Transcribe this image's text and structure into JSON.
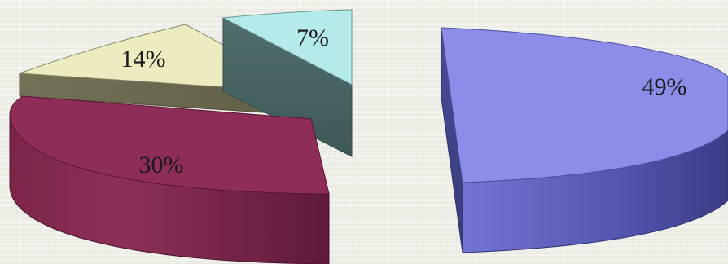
{
  "chart_data": {
    "type": "pie",
    "style": "3d-exploded",
    "legend": "none",
    "title": "",
    "slices": [
      {
        "key": "s49",
        "label": "49%",
        "value": 49,
        "top_color": "#8b8de8",
        "side_color": "#4e50a8",
        "edge_color": "#3c3e86"
      },
      {
        "key": "s30",
        "label": "30%",
        "value": 30,
        "top_color": "#8e2d58",
        "side_color": "#6e1f44",
        "edge_color": "#551733"
      },
      {
        "key": "s14",
        "label": "14%",
        "value": 14,
        "top_color": "#ececc0",
        "side_color": "#6f6e52",
        "edge_color": "#56553e"
      },
      {
        "key": "s7",
        "label": "7%",
        "value": 7,
        "top_color": "#b5eaea",
        "side_color": "#4b6a69",
        "edge_color": "#3a5554"
      }
    ]
  }
}
